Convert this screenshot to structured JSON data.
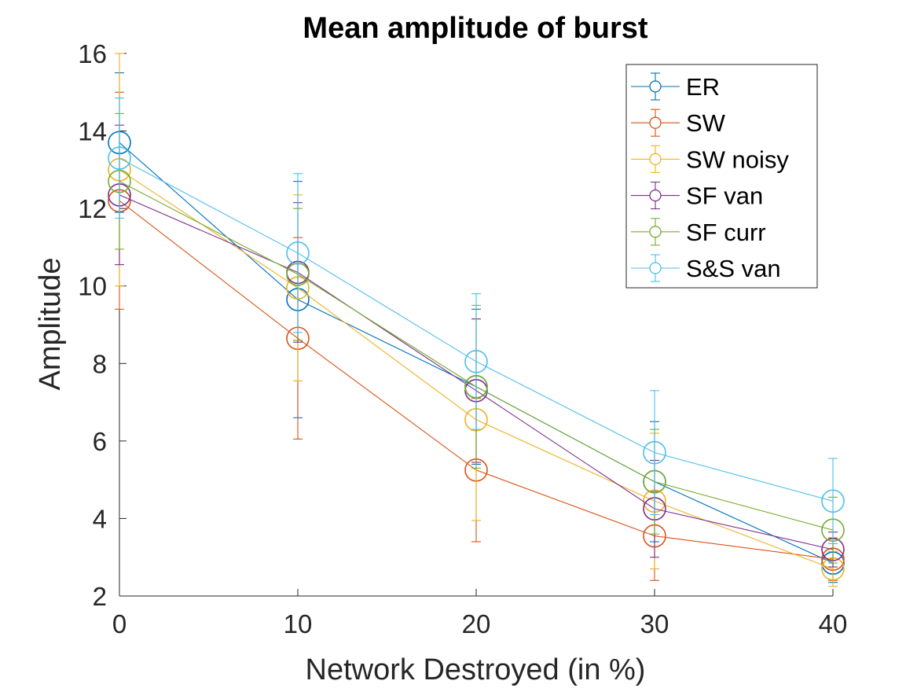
{
  "chart_data": {
    "type": "line",
    "title": "Mean amplitude of burst",
    "xlabel": "Network Destroyed (in %)",
    "ylabel": "Amplitude",
    "x": [
      0,
      10,
      20,
      30,
      40
    ],
    "xlim": [
      0,
      40
    ],
    "ylim": [
      2,
      16
    ],
    "xticks": [
      "0",
      "10",
      "20",
      "30",
      "40"
    ],
    "yticks": [
      "2",
      "4",
      "6",
      "8",
      "10",
      "12",
      "14",
      "16"
    ],
    "legend_position": "top-right",
    "grid": false,
    "error_bars": true,
    "series": [
      {
        "name": "ER",
        "color": "#0072BD",
        "values": [
          13.7,
          9.65,
          7.4,
          4.95,
          2.85
        ],
        "error": [
          1.8,
          3.05,
          2.0,
          1.55,
          0.5
        ]
      },
      {
        "name": "SW",
        "color": "#D95319",
        "values": [
          12.2,
          8.65,
          5.25,
          3.55,
          2.95
        ],
        "error": [
          2.8,
          2.6,
          1.85,
          1.15,
          0.55
        ]
      },
      {
        "name": "SW noisy",
        "color": "#EDB120",
        "values": [
          13.0,
          9.95,
          6.55,
          4.45,
          2.7
        ],
        "error": [
          3.0,
          2.4,
          2.6,
          1.75,
          0.45
        ]
      },
      {
        "name": "SF van",
        "color": "#7E2F8E",
        "values": [
          12.35,
          10.35,
          7.3,
          4.25,
          3.2
        ],
        "error": [
          1.8,
          1.8,
          1.85,
          1.25,
          0.45
        ]
      },
      {
        "name": "SF curr",
        "color": "#77AC30",
        "values": [
          12.7,
          10.3,
          7.4,
          4.95,
          3.7
        ],
        "error": [
          1.75,
          1.7,
          2.1,
          1.35,
          0.85
        ]
      },
      {
        "name": "S&S van",
        "color": "#4DBEEE",
        "values": [
          13.3,
          10.85,
          8.05,
          5.7,
          4.45
        ],
        "error": [
          1.55,
          2.05,
          1.75,
          1.6,
          1.1
        ]
      }
    ]
  }
}
